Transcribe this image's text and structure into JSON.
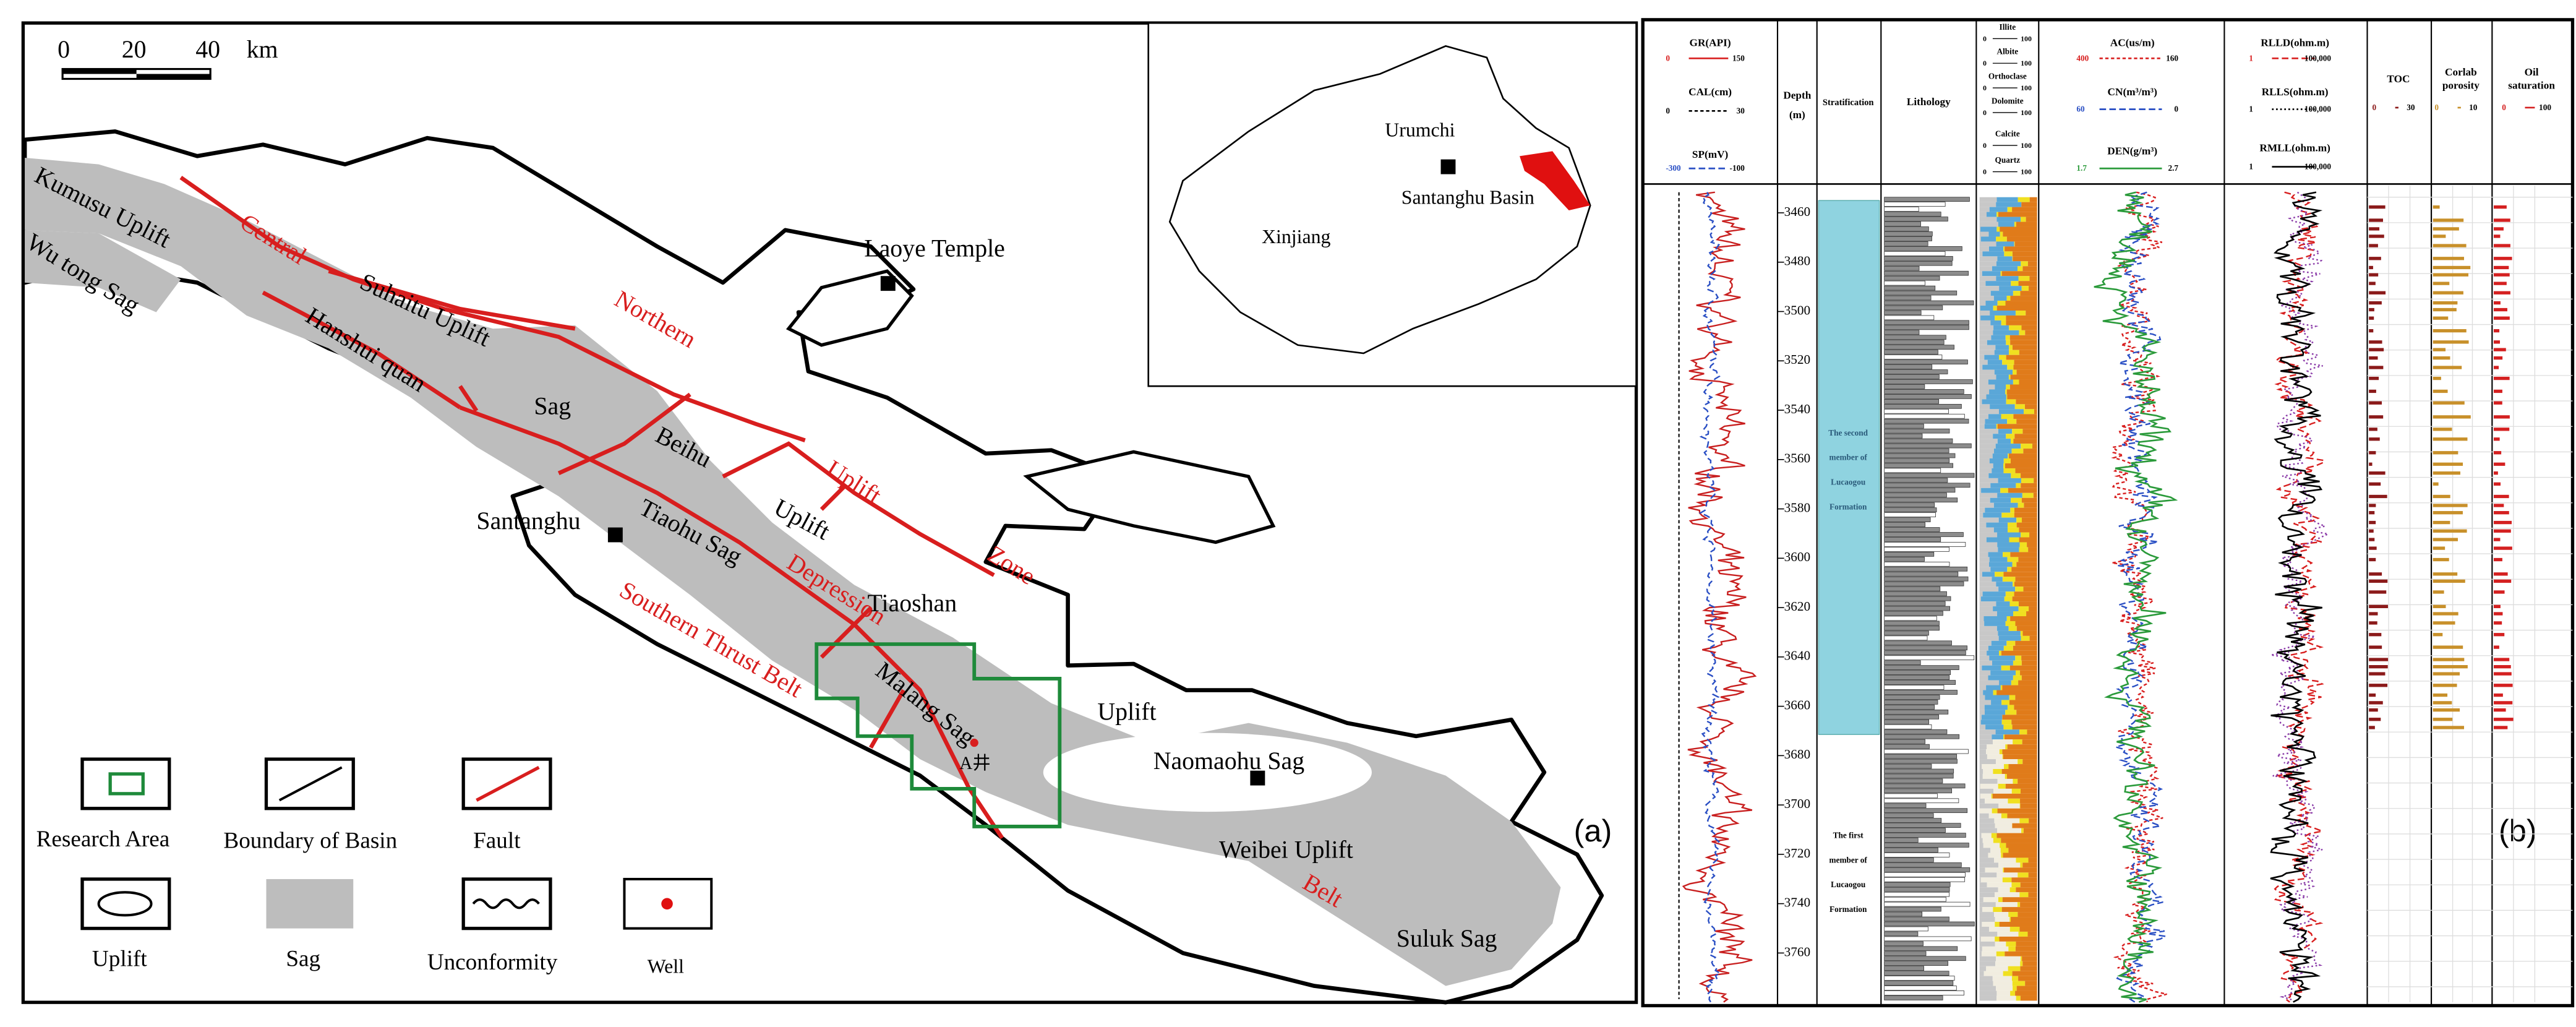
{
  "map": {
    "scale": [
      "0",
      "20",
      "40",
      "km"
    ],
    "labels": [
      "Kumusu Uplift",
      "Wu tong Sag",
      "Central",
      "Suhaitu Uplift",
      "Hanshui quan",
      "Sag",
      "Northern",
      "Laoye Temple",
      "Beihu",
      "Uplift",
      "Uplift",
      "Santanghu",
      "Tiaohu Sag",
      "Depression",
      "Zone",
      "Tiaoshan",
      "Southern Thrust Belt",
      "Malang Sag",
      "A井",
      "Uplift",
      "Naomaohu Sag",
      "Weibei Uplift",
      "Belt",
      "Suluk Sag"
    ],
    "inset": [
      "Urumchi",
      "Santanghu Basin",
      "Xinjiang"
    ],
    "legend": [
      "Research Area",
      "Boundary of Basin",
      "Fault",
      "Uplift",
      "Sag",
      "Unconformity",
      "Well"
    ],
    "panel": "(a)"
  },
  "log": {
    "tracks": [
      {
        "name": "GR(API)",
        "min": "0",
        "max": "150"
      },
      {
        "name": "CAL(cm)",
        "min": "0",
        "max": "30"
      },
      {
        "name": "SP(mV)",
        "min": "-300",
        "max": "-100"
      },
      {
        "name": "AC(us/m)",
        "min": "400",
        "max": "160"
      },
      {
        "name": "CN(m³/m³)",
        "min": "60",
        "max": "0"
      },
      {
        "name": "DEN(g/m³)",
        "min": "1.7",
        "max": "2.7"
      },
      {
        "name": "RLLD(ohm.m)",
        "min": "1",
        "max": "100,000"
      },
      {
        "name": "RLLS(ohm.m)",
        "min": "1",
        "max": "100,000"
      },
      {
        "name": "RMLL(ohm.m)",
        "min": "1",
        "max": "100,000"
      },
      {
        "name": "TOC",
        "min": "0",
        "max": "30"
      },
      {
        "name": "Corlab porosity",
        "min": "0",
        "max": "10"
      },
      {
        "name": "Oil saturation",
        "min": "0",
        "max": "100"
      }
    ],
    "depth_label": [
      "Depth",
      "(m)"
    ],
    "stratification": "Stratification",
    "lithology": "Lithology",
    "minerals": [
      {
        "name": "Illite",
        "min": "0",
        "max": "100"
      },
      {
        "name": "Albite",
        "min": "0",
        "max": "100"
      },
      {
        "name": "Orthoclase",
        "min": "0",
        "max": "100"
      },
      {
        "name": "Dolomite",
        "min": "0",
        "max": "100"
      },
      {
        "name": "Calcite",
        "min": "0",
        "max": "100"
      },
      {
        "name": "Quartz",
        "min": "0",
        "max": "100"
      }
    ],
    "depth_lim": [
      3449,
      3780
    ],
    "depth_ticks": [
      3460,
      3480,
      3500,
      3520,
      3540,
      3560,
      3580,
      3600,
      3620,
      3640,
      3660,
      3680,
      3700,
      3720,
      3740,
      3760
    ],
    "members": [
      [
        "The second",
        "member of",
        "Lucaogou",
        "Formation"
      ],
      [
        "The first",
        "member of",
        "Lucaogou",
        "Formation"
      ]
    ],
    "panel": "(b)"
  }
}
